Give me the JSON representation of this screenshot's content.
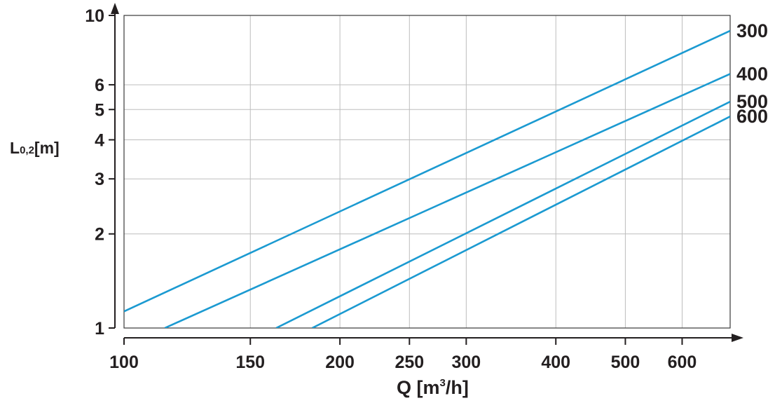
{
  "chart_data": {
    "type": "line",
    "xscale": "log",
    "yscale": "log",
    "xlim": [
      100,
      700
    ],
    "ylim": [
      1,
      10
    ],
    "grid": true,
    "xlabel": {
      "main": "Q [m",
      "sup": "3",
      "end": "/h]"
    },
    "ylabel": {
      "main": "L",
      "sub": "0,2",
      "end": "[m]"
    },
    "x_ticks": [
      100,
      150,
      200,
      250,
      300,
      400,
      500,
      600
    ],
    "x_tick_labels": [
      "100",
      "150",
      "200",
      "250",
      "300",
      "400",
      "500",
      "600"
    ],
    "y_ticks": [
      1,
      2,
      3,
      4,
      5,
      6,
      10
    ],
    "y_tick_labels": [
      "1",
      "2",
      "3",
      "4",
      "5",
      "6",
      "10"
    ],
    "line_color": "#1b9ad1",
    "series": [
      {
        "name": "300",
        "x": [
          100,
          700
        ],
        "y": [
          1.13,
          8.93
        ]
      },
      {
        "name": "400",
        "x": [
          114,
          700
        ],
        "y": [
          1.0,
          6.5
        ]
      },
      {
        "name": "500",
        "x": [
          163,
          700
        ],
        "y": [
          1.0,
          5.3
        ]
      },
      {
        "name": "600",
        "x": [
          183,
          700
        ],
        "y": [
          1.0,
          4.75
        ]
      }
    ]
  }
}
